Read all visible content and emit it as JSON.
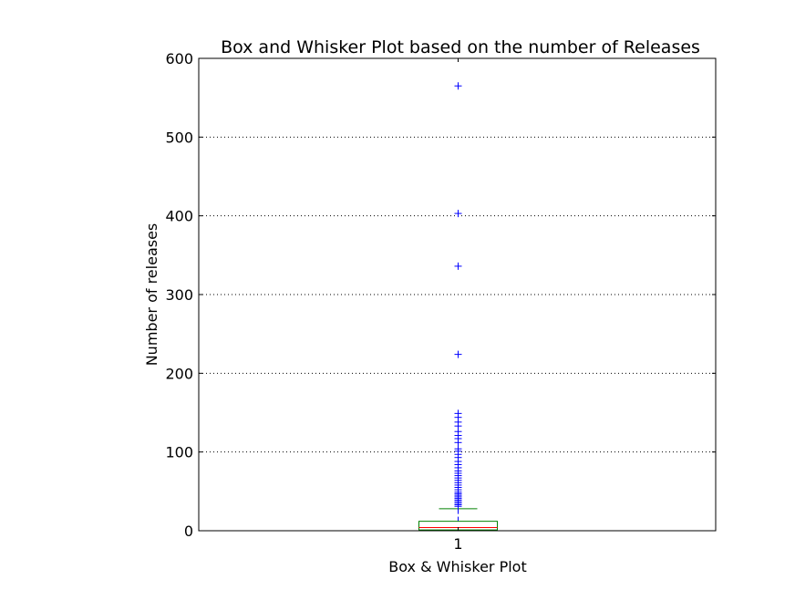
{
  "chart_data": {
    "type": "box",
    "title": "Box and Whisker Plot based on the number of Releases",
    "xlabel": "Box & Whisker Plot",
    "ylabel": "Number of releases",
    "categories": [
      "1"
    ],
    "ylim": [
      0,
      600
    ],
    "yticks": [
      0,
      100,
      200,
      300,
      400,
      500,
      600
    ],
    "ytick_labels": [
      "0",
      "100",
      "200",
      "300",
      "400",
      "500",
      "600"
    ],
    "grid": "y-dotted",
    "boxes": [
      {
        "category": "1",
        "whisker_low": 0,
        "q1": 1,
        "median": 4,
        "q3": 12,
        "whisker_high": 28,
        "outliers": [
          31,
          33,
          35,
          37,
          39,
          41,
          43,
          45,
          47,
          49,
          52,
          55,
          58,
          61,
          64,
          67,
          70,
          73,
          76,
          80,
          84,
          88,
          93,
          97,
          101,
          104,
          112,
          117,
          121,
          126,
          133,
          138,
          144,
          149,
          224,
          336,
          403,
          565
        ]
      }
    ],
    "colors": {
      "box": "#008000",
      "median": "#ff0000",
      "whisker": "#0000ff",
      "outlier": "#0000ff",
      "cap": "#000000"
    }
  }
}
